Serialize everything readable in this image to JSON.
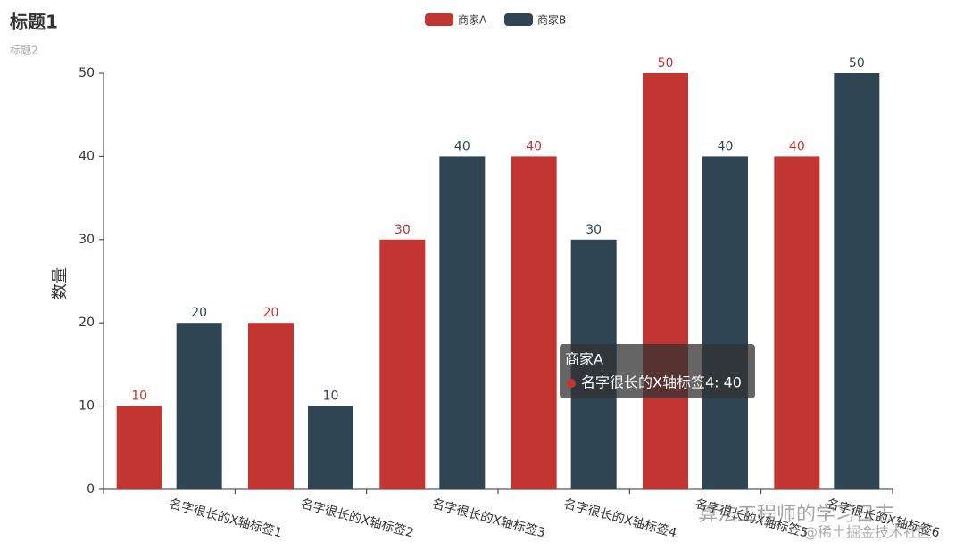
{
  "chart_data": {
    "type": "bar",
    "title": "标题1",
    "subtitle": "标题2",
    "y_label": "数量",
    "categories": [
      "名字很长的X轴标签1",
      "名字很长的X轴标签2",
      "名字很长的X轴标签3",
      "名字很长的X轴标签4",
      "名字很长的X轴标签5",
      "名字很长的X轴标签6"
    ],
    "series": [
      {
        "name": "商家A",
        "color": "#c23531",
        "values": [
          10,
          20,
          30,
          40,
          50,
          40
        ]
      },
      {
        "name": "商家B",
        "color": "#2f4554",
        "values": [
          20,
          10,
          40,
          30,
          40,
          50
        ]
      }
    ],
    "ylim": [
      0,
      50
    ],
    "yticks": [
      0,
      10,
      20,
      30,
      40,
      50
    ],
    "grid": false,
    "legend": "top",
    "tooltip": {
      "title": "商家A",
      "label": "名字很长的X轴标签4: 40"
    },
    "watermark": [
      "算法工程师的学习日志",
      "@稀土掘金技术社区"
    ]
  }
}
